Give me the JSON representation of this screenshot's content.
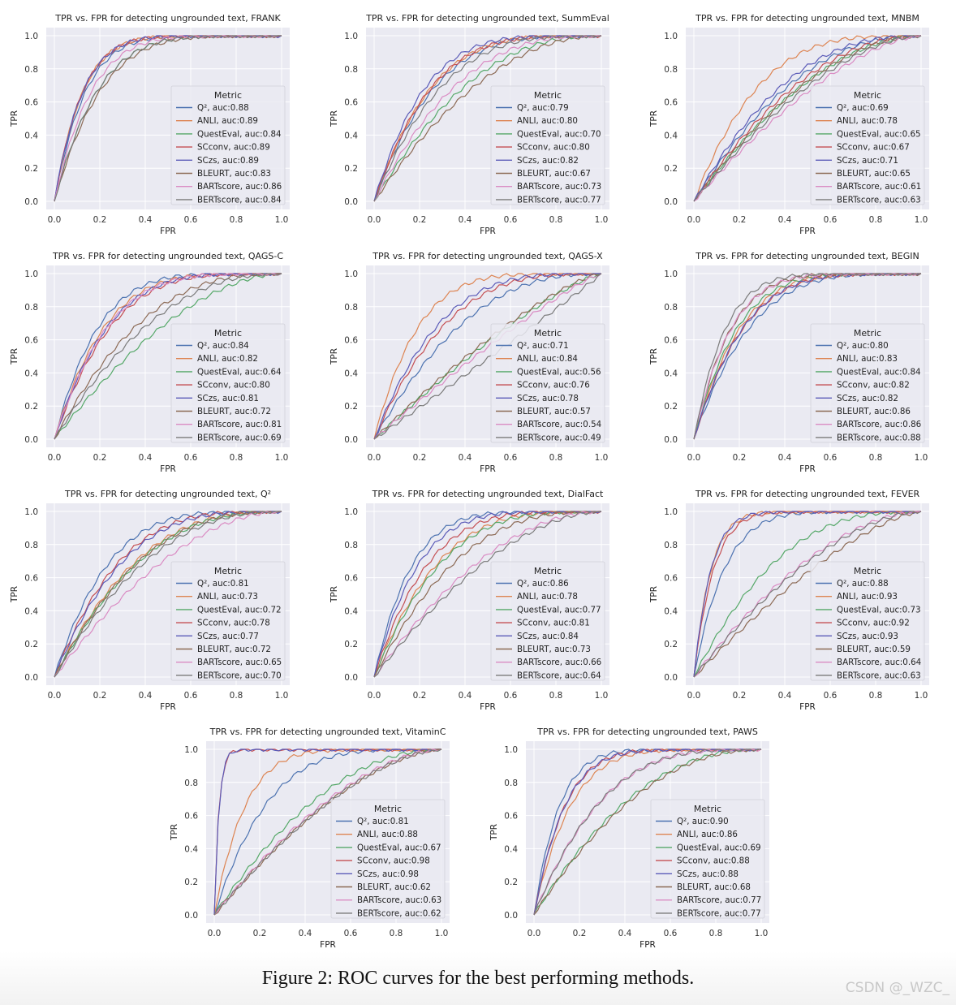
{
  "figure": {
    "caption": "Figure 2: ROC curves for the best performing methods.",
    "watermark": "CSDN @_WZC_"
  },
  "colors": {
    "Q²": "#4c72b0",
    "ANLI": "#dd8452",
    "QuestEval": "#55a868",
    "SCconv": "#c44e52",
    "SCzs": "#5b5bb8",
    "BLEURT": "#8c6a55",
    "BARTscore": "#da8bc3",
    "BERTscore": "#7a7a7a",
    "axes_bg": "#eaeaf2",
    "grid": "#ffffff"
  },
  "chart_data": [
    {
      "type": "line",
      "title": "TPR vs. FPR for detecting ungrounded text, FRANK",
      "xlabel": "FPR",
      "ylabel": "TPR",
      "xlim": [
        0,
        1
      ],
      "ylim": [
        0,
        1
      ],
      "xticks": [
        "0.0",
        "0.2",
        "0.4",
        "0.6",
        "0.8",
        "1.0"
      ],
      "yticks": [
        "0.0",
        "0.2",
        "0.4",
        "0.6",
        "0.8",
        "1.0"
      ],
      "grid": true,
      "legend": {
        "title": "Metric",
        "position": "lower-right"
      },
      "series": [
        {
          "name": "Q²",
          "auc": "0.88",
          "label": "Q², auc:0.88"
        },
        {
          "name": "ANLI",
          "auc": "0.89",
          "label": "ANLI, auc:0.89"
        },
        {
          "name": "QuestEval",
          "auc": "0.84",
          "label": "QuestEval, auc:0.84"
        },
        {
          "name": "SCconv",
          "auc": "0.89",
          "label": "SCconv, auc:0.89"
        },
        {
          "name": "SCzs",
          "auc": "0.89",
          "label": "SCzs, auc:0.89"
        },
        {
          "name": "BLEURT",
          "auc": "0.83",
          "label": "BLEURT, auc:0.83"
        },
        {
          "name": "BARTscore",
          "auc": "0.86",
          "label": "BARTscore, auc:0.86"
        },
        {
          "name": "BERTscore",
          "auc": "0.84",
          "label": "BERTscore, auc:0.84"
        }
      ]
    },
    {
      "type": "line",
      "title": "TPR vs. FPR for detecting ungrounded text, SummEval",
      "xlabel": "FPR",
      "ylabel": "TPR",
      "xlim": [
        0,
        1
      ],
      "ylim": [
        0,
        1
      ],
      "xticks": [
        "0.0",
        "0.2",
        "0.4",
        "0.6",
        "0.8",
        "1.0"
      ],
      "yticks": [
        "0.0",
        "0.2",
        "0.4",
        "0.6",
        "0.8",
        "1.0"
      ],
      "grid": true,
      "legend": {
        "title": "Metric",
        "position": "lower-right"
      },
      "series": [
        {
          "name": "Q²",
          "auc": "0.79",
          "label": "Q², auc:0.79"
        },
        {
          "name": "ANLI",
          "auc": "0.80",
          "label": "ANLI, auc:0.80"
        },
        {
          "name": "QuestEval",
          "auc": "0.70",
          "label": "QuestEval, auc:0.70"
        },
        {
          "name": "SCconv",
          "auc": "0.80",
          "label": "SCconv, auc:0.80"
        },
        {
          "name": "SCzs",
          "auc": "0.82",
          "label": "SCzs, auc:0.82"
        },
        {
          "name": "BLEURT",
          "auc": "0.67",
          "label": "BLEURT, auc:0.67"
        },
        {
          "name": "BARTscore",
          "auc": "0.73",
          "label": "BARTscore, auc:0.73"
        },
        {
          "name": "BERTscore",
          "auc": "0.77",
          "label": "BERTscore, auc:0.77"
        }
      ]
    },
    {
      "type": "line",
      "title": "TPR vs. FPR for detecting ungrounded text, MNBM",
      "xlabel": "FPR",
      "ylabel": "TPR",
      "xlim": [
        0,
        1
      ],
      "ylim": [
        0,
        1
      ],
      "xticks": [
        "0.0",
        "0.2",
        "0.4",
        "0.6",
        "0.8",
        "1.0"
      ],
      "yticks": [
        "0.0",
        "0.2",
        "0.4",
        "0.6",
        "0.8",
        "1.0"
      ],
      "grid": true,
      "legend": {
        "title": "Metric",
        "position": "lower-right"
      },
      "series": [
        {
          "name": "Q²",
          "auc": "0.69",
          "label": "Q², auc:0.69"
        },
        {
          "name": "ANLI",
          "auc": "0.78",
          "label": "ANLI, auc:0.78"
        },
        {
          "name": "QuestEval",
          "auc": "0.65",
          "label": "QuestEval, auc:0.65"
        },
        {
          "name": "SCconv",
          "auc": "0.67",
          "label": "SCconv, auc:0.67"
        },
        {
          "name": "SCzs",
          "auc": "0.71",
          "label": "SCzs, auc:0.71"
        },
        {
          "name": "BLEURT",
          "auc": "0.65",
          "label": "BLEURT, auc:0.65"
        },
        {
          "name": "BARTscore",
          "auc": "0.61",
          "label": "BARTscore, auc:0.61"
        },
        {
          "name": "BERTscore",
          "auc": "0.63",
          "label": "BERTscore, auc:0.63"
        }
      ]
    },
    {
      "type": "line",
      "title": "TPR vs. FPR for detecting ungrounded text, QAGS-C",
      "xlabel": "FPR",
      "ylabel": "TPR",
      "xlim": [
        0,
        1
      ],
      "ylim": [
        0,
        1
      ],
      "xticks": [
        "0.0",
        "0.2",
        "0.4",
        "0.6",
        "0.8",
        "1.0"
      ],
      "yticks": [
        "0.0",
        "0.2",
        "0.4",
        "0.6",
        "0.8",
        "1.0"
      ],
      "grid": true,
      "legend": {
        "title": "Metric",
        "position": "lower-right"
      },
      "series": [
        {
          "name": "Q²",
          "auc": "0.84",
          "label": "Q², auc:0.84"
        },
        {
          "name": "ANLI",
          "auc": "0.82",
          "label": "ANLI, auc:0.82"
        },
        {
          "name": "QuestEval",
          "auc": "0.64",
          "label": "QuestEval, auc:0.64"
        },
        {
          "name": "SCconv",
          "auc": "0.80",
          "label": "SCconv, auc:0.80"
        },
        {
          "name": "SCzs",
          "auc": "0.81",
          "label": "SCzs, auc:0.81"
        },
        {
          "name": "BLEURT",
          "auc": "0.72",
          "label": "BLEURT, auc:0.72"
        },
        {
          "name": "BARTscore",
          "auc": "0.81",
          "label": "BARTscore, auc:0.81"
        },
        {
          "name": "BERTscore",
          "auc": "0.69",
          "label": "BERTscore, auc:0.69"
        }
      ]
    },
    {
      "type": "line",
      "title": "TPR vs. FPR for detecting ungrounded text, QAGS-X",
      "xlabel": "FPR",
      "ylabel": "TPR",
      "xlim": [
        0,
        1
      ],
      "ylim": [
        0,
        1
      ],
      "xticks": [
        "0.0",
        "0.2",
        "0.4",
        "0.6",
        "0.8",
        "1.0"
      ],
      "yticks": [
        "0.0",
        "0.2",
        "0.4",
        "0.6",
        "0.8",
        "1.0"
      ],
      "grid": true,
      "legend": {
        "title": "Metric",
        "position": "lower-right"
      },
      "series": [
        {
          "name": "Q²",
          "auc": "0.71",
          "label": "Q², auc:0.71"
        },
        {
          "name": "ANLI",
          "auc": "0.84",
          "label": "ANLI, auc:0.84"
        },
        {
          "name": "QuestEval",
          "auc": "0.56",
          "label": "QuestEval, auc:0.56"
        },
        {
          "name": "SCconv",
          "auc": "0.76",
          "label": "SCconv, auc:0.76"
        },
        {
          "name": "SCzs",
          "auc": "0.78",
          "label": "SCzs, auc:0.78"
        },
        {
          "name": "BLEURT",
          "auc": "0.57",
          "label": "BLEURT, auc:0.57"
        },
        {
          "name": "BARTscore",
          "auc": "0.54",
          "label": "BARTscore, auc:0.54"
        },
        {
          "name": "BERTscore",
          "auc": "0.49",
          "label": "BERTscore, auc:0.49"
        }
      ]
    },
    {
      "type": "line",
      "title": "TPR vs. FPR for detecting ungrounded text, BEGIN",
      "xlabel": "FPR",
      "ylabel": "TPR",
      "xlim": [
        0,
        1
      ],
      "ylim": [
        0,
        1
      ],
      "xticks": [
        "0.0",
        "0.2",
        "0.4",
        "0.6",
        "0.8",
        "1.0"
      ],
      "yticks": [
        "0.0",
        "0.2",
        "0.4",
        "0.6",
        "0.8",
        "1.0"
      ],
      "grid": true,
      "legend": {
        "title": "Metric",
        "position": "lower-right"
      },
      "series": [
        {
          "name": "Q²",
          "auc": "0.80",
          "label": "Q², auc:0.80"
        },
        {
          "name": "ANLI",
          "auc": "0.83",
          "label": "ANLI, auc:0.83"
        },
        {
          "name": "QuestEval",
          "auc": "0.84",
          "label": "QuestEval, auc:0.84"
        },
        {
          "name": "SCconv",
          "auc": "0.82",
          "label": "SCconv, auc:0.82"
        },
        {
          "name": "SCzs",
          "auc": "0.82",
          "label": "SCzs, auc:0.82"
        },
        {
          "name": "BLEURT",
          "auc": "0.86",
          "label": "BLEURT, auc:0.86"
        },
        {
          "name": "BARTscore",
          "auc": "0.86",
          "label": "BARTscore, auc:0.86"
        },
        {
          "name": "BERTscore",
          "auc": "0.88",
          "label": "BERTscore, auc:0.88"
        }
      ]
    },
    {
      "type": "line",
      "title": "TPR vs. FPR for detecting ungrounded text, Q²",
      "xlabel": "FPR",
      "ylabel": "TPR",
      "xlim": [
        0,
        1
      ],
      "ylim": [
        0,
        1
      ],
      "xticks": [
        "0.0",
        "0.2",
        "0.4",
        "0.6",
        "0.8",
        "1.0"
      ],
      "yticks": [
        "0.0",
        "0.2",
        "0.4",
        "0.6",
        "0.8",
        "1.0"
      ],
      "grid": true,
      "legend": {
        "title": "Metric",
        "position": "lower-right"
      },
      "series": [
        {
          "name": "Q²",
          "auc": "0.81",
          "label": "Q², auc:0.81"
        },
        {
          "name": "ANLI",
          "auc": "0.73",
          "label": "ANLI, auc:0.73"
        },
        {
          "name": "QuestEval",
          "auc": "0.72",
          "label": "QuestEval, auc:0.72"
        },
        {
          "name": "SCconv",
          "auc": "0.78",
          "label": "SCconv, auc:0.78"
        },
        {
          "name": "SCzs",
          "auc": "0.77",
          "label": "SCzs, auc:0.77"
        },
        {
          "name": "BLEURT",
          "auc": "0.72",
          "label": "BLEURT, auc:0.72"
        },
        {
          "name": "BARTscore",
          "auc": "0.65",
          "label": "BARTscore, auc:0.65"
        },
        {
          "name": "BERTscore",
          "auc": "0.70",
          "label": "BERTscore, auc:0.70"
        }
      ]
    },
    {
      "type": "line",
      "title": "TPR vs. FPR for detecting ungrounded text, DialFact",
      "xlabel": "FPR",
      "ylabel": "TPR",
      "xlim": [
        0,
        1
      ],
      "ylim": [
        0,
        1
      ],
      "xticks": [
        "0.0",
        "0.2",
        "0.4",
        "0.6",
        "0.8",
        "1.0"
      ],
      "yticks": [
        "0.0",
        "0.2",
        "0.4",
        "0.6",
        "0.8",
        "1.0"
      ],
      "grid": true,
      "legend": {
        "title": "Metric",
        "position": "lower-right"
      },
      "series": [
        {
          "name": "Q²",
          "auc": "0.86",
          "label": "Q², auc:0.86"
        },
        {
          "name": "ANLI",
          "auc": "0.78",
          "label": "ANLI, auc:0.78"
        },
        {
          "name": "QuestEval",
          "auc": "0.77",
          "label": "QuestEval, auc:0.77"
        },
        {
          "name": "SCconv",
          "auc": "0.81",
          "label": "SCconv, auc:0.81"
        },
        {
          "name": "SCzs",
          "auc": "0.84",
          "label": "SCzs, auc:0.84"
        },
        {
          "name": "BLEURT",
          "auc": "0.73",
          "label": "BLEURT, auc:0.73"
        },
        {
          "name": "BARTscore",
          "auc": "0.66",
          "label": "BARTscore, auc:0.66"
        },
        {
          "name": "BERTscore",
          "auc": "0.64",
          "label": "BERTscore, auc:0.64"
        }
      ]
    },
    {
      "type": "line",
      "title": "TPR vs. FPR for detecting ungrounded text, FEVER",
      "xlabel": "FPR",
      "ylabel": "TPR",
      "xlim": [
        0,
        1
      ],
      "ylim": [
        0,
        1
      ],
      "xticks": [
        "0.0",
        "0.2",
        "0.4",
        "0.6",
        "0.8",
        "1.0"
      ],
      "yticks": [
        "0.0",
        "0.2",
        "0.4",
        "0.6",
        "0.8",
        "1.0"
      ],
      "grid": true,
      "legend": {
        "title": "Metric",
        "position": "lower-right"
      },
      "series": [
        {
          "name": "Q²",
          "auc": "0.88",
          "label": "Q², auc:0.88"
        },
        {
          "name": "ANLI",
          "auc": "0.93",
          "label": "ANLI, auc:0.93"
        },
        {
          "name": "QuestEval",
          "auc": "0.73",
          "label": "QuestEval, auc:0.73"
        },
        {
          "name": "SCconv",
          "auc": "0.92",
          "label": "SCconv, auc:0.92"
        },
        {
          "name": "SCzs",
          "auc": "0.93",
          "label": "SCzs, auc:0.93"
        },
        {
          "name": "BLEURT",
          "auc": "0.59",
          "label": "BLEURT, auc:0.59"
        },
        {
          "name": "BARTscore",
          "auc": "0.64",
          "label": "BARTscore, auc:0.64"
        },
        {
          "name": "BERTscore",
          "auc": "0.63",
          "label": "BERTscore, auc:0.63"
        }
      ]
    },
    {
      "type": "line",
      "title": "TPR vs. FPR for detecting ungrounded text, VitaminC",
      "xlabel": "FPR",
      "ylabel": "TPR",
      "xlim": [
        0,
        1
      ],
      "ylim": [
        0,
        1
      ],
      "xticks": [
        "0.0",
        "0.2",
        "0.4",
        "0.6",
        "0.8",
        "1.0"
      ],
      "yticks": [
        "0.0",
        "0.2",
        "0.4",
        "0.6",
        "0.8",
        "1.0"
      ],
      "grid": true,
      "legend": {
        "title": "Metric",
        "position": "lower-right"
      },
      "series": [
        {
          "name": "Q²",
          "auc": "0.81",
          "label": "Q², auc:0.81"
        },
        {
          "name": "ANLI",
          "auc": "0.88",
          "label": "ANLI, auc:0.88"
        },
        {
          "name": "QuestEval",
          "auc": "0.67",
          "label": "QuestEval, auc:0.67"
        },
        {
          "name": "SCconv",
          "auc": "0.98",
          "label": "SCconv, auc:0.98"
        },
        {
          "name": "SCzs",
          "auc": "0.98",
          "label": "SCzs, auc:0.98"
        },
        {
          "name": "BLEURT",
          "auc": "0.62",
          "label": "BLEURT, auc:0.62"
        },
        {
          "name": "BARTscore",
          "auc": "0.63",
          "label": "BARTscore, auc:0.63"
        },
        {
          "name": "BERTscore",
          "auc": "0.62",
          "label": "BERTscore, auc:0.62"
        }
      ]
    },
    {
      "type": "line",
      "title": "TPR vs. FPR for detecting ungrounded text, PAWS",
      "xlabel": "FPR",
      "ylabel": "TPR",
      "xlim": [
        0,
        1
      ],
      "ylim": [
        0,
        1
      ],
      "xticks": [
        "0.0",
        "0.2",
        "0.4",
        "0.6",
        "0.8",
        "1.0"
      ],
      "yticks": [
        "0.0",
        "0.2",
        "0.4",
        "0.6",
        "0.8",
        "1.0"
      ],
      "grid": true,
      "legend": {
        "title": "Metric",
        "position": "lower-right"
      },
      "series": [
        {
          "name": "Q²",
          "auc": "0.90",
          "label": "Q², auc:0.90"
        },
        {
          "name": "ANLI",
          "auc": "0.86",
          "label": "ANLI, auc:0.86"
        },
        {
          "name": "QuestEval",
          "auc": "0.69",
          "label": "QuestEval, auc:0.69"
        },
        {
          "name": "SCconv",
          "auc": "0.88",
          "label": "SCconv, auc:0.88"
        },
        {
          "name": "SCzs",
          "auc": "0.88",
          "label": "SCzs, auc:0.88"
        },
        {
          "name": "BLEURT",
          "auc": "0.68",
          "label": "BLEURT, auc:0.68"
        },
        {
          "name": "BARTscore",
          "auc": "0.77",
          "label": "BARTscore, auc:0.77"
        },
        {
          "name": "BERTscore",
          "auc": "0.77",
          "label": "BERTscore, auc:0.77"
        }
      ]
    }
  ]
}
